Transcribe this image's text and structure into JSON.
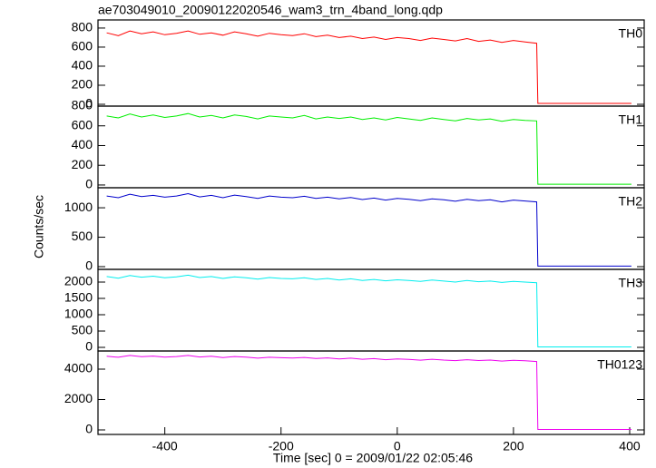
{
  "chart_data": [
    {
      "type": "line",
      "title": "ae703049010_20090122020546_wam3_trn_4band_long.qdp",
      "label": "TH0",
      "color": "#ff0000",
      "x": [
        -500,
        -480,
        -460,
        -440,
        -420,
        -400,
        -380,
        -360,
        -340,
        -320,
        -300,
        -280,
        -260,
        -240,
        -220,
        -200,
        -180,
        -160,
        -140,
        -120,
        -100,
        -80,
        -60,
        -40,
        -20,
        0,
        20,
        40,
        60,
        80,
        100,
        120,
        140,
        160,
        180,
        200,
        220,
        240,
        242,
        300,
        350,
        403
      ],
      "values": [
        750,
        720,
        770,
        740,
        760,
        730,
        745,
        770,
        735,
        750,
        725,
        760,
        740,
        715,
        745,
        730,
        720,
        740,
        710,
        725,
        700,
        715,
        690,
        705,
        680,
        700,
        690,
        670,
        695,
        680,
        665,
        690,
        660,
        675,
        650,
        670,
        655,
        640,
        10,
        10,
        10,
        10
      ],
      "xlim": [
        -515,
        425
      ],
      "ylim": [
        -19,
        885
      ],
      "yticks": [
        0,
        200,
        400,
        600,
        800
      ]
    },
    {
      "type": "line",
      "label": "TH1",
      "color": "#00ee00",
      "x": [
        -500,
        -480,
        -460,
        -440,
        -420,
        -400,
        -380,
        -360,
        -340,
        -320,
        -300,
        -280,
        -260,
        -240,
        -220,
        -200,
        -180,
        -160,
        -140,
        -120,
        -100,
        -80,
        -60,
        -40,
        -20,
        0,
        20,
        40,
        60,
        80,
        100,
        120,
        140,
        160,
        180,
        200,
        220,
        240,
        242,
        300,
        350,
        403
      ],
      "values": [
        700,
        680,
        720,
        690,
        710,
        685,
        700,
        725,
        690,
        705,
        680,
        710,
        695,
        670,
        700,
        690,
        680,
        705,
        670,
        690,
        675,
        690,
        665,
        680,
        660,
        685,
        670,
        655,
        680,
        665,
        650,
        675,
        660,
        670,
        645,
        665,
        655,
        650,
        8,
        8,
        8,
        8
      ],
      "xlim": [
        -515,
        425
      ],
      "ylim": [
        -28,
        800
      ],
      "yticks": [
        0,
        200,
        400,
        600,
        800
      ]
    },
    {
      "type": "line",
      "label": "TH2",
      "color": "#0000cc",
      "y_label": "Counts/sec",
      "x": [
        -500,
        -480,
        -460,
        -440,
        -420,
        -400,
        -380,
        -360,
        -340,
        -320,
        -300,
        -280,
        -260,
        -240,
        -220,
        -200,
        -180,
        -160,
        -140,
        -120,
        -100,
        -80,
        -60,
        -40,
        -20,
        0,
        20,
        40,
        60,
        80,
        100,
        120,
        140,
        160,
        180,
        200,
        220,
        240,
        242,
        300,
        350,
        403
      ],
      "values": [
        1200,
        1170,
        1230,
        1190,
        1210,
        1180,
        1200,
        1240,
        1185,
        1210,
        1170,
        1215,
        1190,
        1160,
        1200,
        1180,
        1170,
        1195,
        1160,
        1180,
        1150,
        1175,
        1140,
        1165,
        1130,
        1160,
        1145,
        1120,
        1150,
        1135,
        1110,
        1145,
        1120,
        1135,
        1100,
        1130,
        1115,
        1100,
        10,
        10,
        10,
        10
      ],
      "xlim": [
        -515,
        425
      ],
      "ylim": [
        -46,
        1340
      ],
      "yticks": [
        0,
        500,
        1000
      ]
    },
    {
      "type": "line",
      "label": "TH3",
      "color": "#00eeee",
      "x": [
        -500,
        -480,
        -460,
        -440,
        -420,
        -400,
        -380,
        -360,
        -340,
        -320,
        -300,
        -280,
        -260,
        -240,
        -220,
        -200,
        -180,
        -160,
        -140,
        -120,
        -100,
        -80,
        -60,
        -40,
        -20,
        0,
        20,
        40,
        60,
        80,
        100,
        120,
        140,
        160,
        180,
        200,
        220,
        240,
        242,
        300,
        350,
        403
      ],
      "values": [
        2170,
        2120,
        2200,
        2150,
        2180,
        2130,
        2160,
        2210,
        2140,
        2170,
        2110,
        2160,
        2130,
        2090,
        2140,
        2110,
        2100,
        2130,
        2080,
        2110,
        2060,
        2100,
        2050,
        2080,
        2040,
        2070,
        2050,
        2020,
        2060,
        2030,
        2000,
        2050,
        2010,
        2030,
        1990,
        2020,
        2000,
        1980,
        15,
        15,
        15,
        15
      ],
      "xlim": [
        -515,
        425
      ],
      "ylim": [
        -111,
        2389
      ],
      "yticks": [
        0,
        500,
        1000,
        1500,
        2000
      ]
    },
    {
      "type": "line",
      "label": "TH0123",
      "color": "#ee00ee",
      "x_label": "Time [sec] 0 = 2009/01/22 02:05:46",
      "x": [
        -500,
        -480,
        -460,
        -440,
        -420,
        -400,
        -380,
        -360,
        -340,
        -320,
        -300,
        -280,
        -260,
        -240,
        -220,
        -200,
        -180,
        -160,
        -140,
        -120,
        -100,
        -80,
        -60,
        -40,
        -20,
        0,
        20,
        40,
        60,
        80,
        100,
        120,
        140,
        160,
        180,
        200,
        220,
        240,
        242,
        300,
        350,
        403
      ],
      "values": [
        4850,
        4780,
        4900,
        4820,
        4860,
        4790,
        4830,
        4900,
        4800,
        4850,
        4760,
        4830,
        4790,
        4720,
        4780,
        4750,
        4730,
        4770,
        4700,
        4740,
        4670,
        4720,
        4650,
        4690,
        4620,
        4670,
        4640,
        4590,
        4650,
        4600,
        4560,
        4620,
        4570,
        4600,
        4530,
        4580,
        4550,
        4500,
        30,
        30,
        30,
        30
      ],
      "xlim": [
        -515,
        425
      ],
      "ylim": [
        -298,
        5194
      ],
      "yticks": [
        0,
        2000,
        4000
      ],
      "xticks": [
        -400,
        -200,
        0,
        200,
        400
      ]
    }
  ]
}
